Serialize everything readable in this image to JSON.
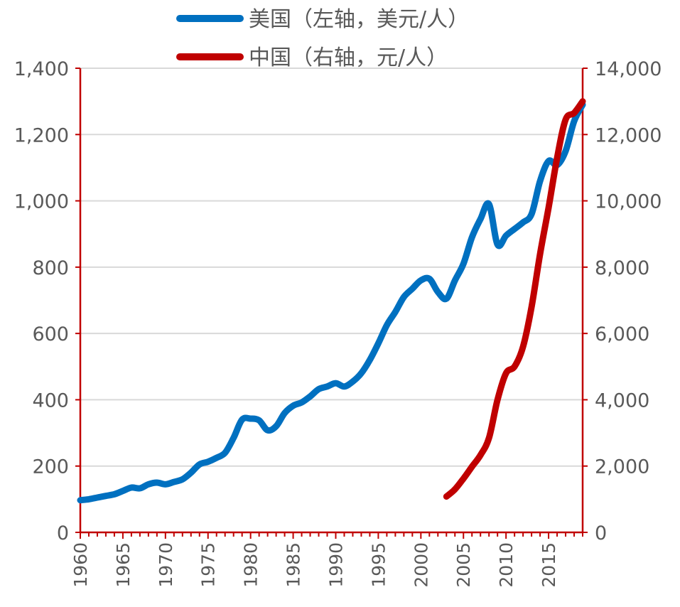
{
  "chart_data": {
    "type": "line",
    "title": "",
    "xlabel": "",
    "ylabel_left": "",
    "ylabel_right": "",
    "grid": true,
    "legend_position": "top",
    "x_range": [
      1960,
      2019
    ],
    "x_tick_labels": [
      "1960",
      "1965",
      "1970",
      "1975",
      "1980",
      "1985",
      "1990",
      "1995",
      "2000",
      "2005",
      "2010",
      "2015"
    ],
    "y_left": {
      "range": [
        0,
        1400
      ],
      "tick_labels": [
        "0",
        "200",
        "400",
        "600",
        "800",
        "1,000",
        "1,200",
        "1,400"
      ]
    },
    "y_right": {
      "range": [
        0,
        14000
      ],
      "tick_labels": [
        "0",
        "2,000",
        "4,000",
        "6,000",
        "8,000",
        "10,000",
        "12,000",
        "14,000"
      ]
    },
    "series": [
      {
        "name": "美国（左轴，美元/人）",
        "axis": "left",
        "color": "#0070c0",
        "x": [
          1960,
          1961,
          1962,
          1963,
          1964,
          1965,
          1966,
          1967,
          1968,
          1969,
          1970,
          1971,
          1972,
          1973,
          1974,
          1975,
          1976,
          1977,
          1978,
          1979,
          1980,
          1981,
          1982,
          1983,
          1984,
          1985,
          1986,
          1987,
          1988,
          1989,
          1990,
          1991,
          1992,
          1993,
          1994,
          1995,
          1996,
          1997,
          1998,
          1999,
          2000,
          2001,
          2002,
          2003,
          2004,
          2005,
          2006,
          2007,
          2008,
          2009,
          2010,
          2011,
          2012,
          2013,
          2014,
          2015,
          2016,
          2017,
          2018,
          2019
        ],
        "values": [
          97,
          100,
          105,
          110,
          115,
          125,
          135,
          133,
          145,
          150,
          145,
          152,
          160,
          180,
          205,
          213,
          225,
          240,
          285,
          340,
          343,
          338,
          308,
          320,
          360,
          382,
          392,
          410,
          432,
          440,
          450,
          440,
          455,
          480,
          520,
          570,
          625,
          665,
          710,
          735,
          760,
          765,
          725,
          705,
          760,
          810,
          890,
          945,
          990,
          868,
          895,
          915,
          935,
          960,
          1060,
          1120,
          1108,
          1150,
          1240,
          1290
        ]
      },
      {
        "name": "中国（右轴，元/人）",
        "axis": "right",
        "color": "#c00000",
        "x": [
          2003,
          2004,
          2005,
          2006,
          2007,
          2008,
          2009,
          2010,
          2011,
          2012,
          2013,
          2014,
          2015,
          2016,
          2017,
          2018,
          2019
        ],
        "values": [
          1080,
          1300,
          1620,
          1980,
          2330,
          2850,
          4000,
          4800,
          5000,
          5600,
          6800,
          8400,
          9800,
          11300,
          12450,
          12650,
          13000
        ]
      }
    ]
  }
}
